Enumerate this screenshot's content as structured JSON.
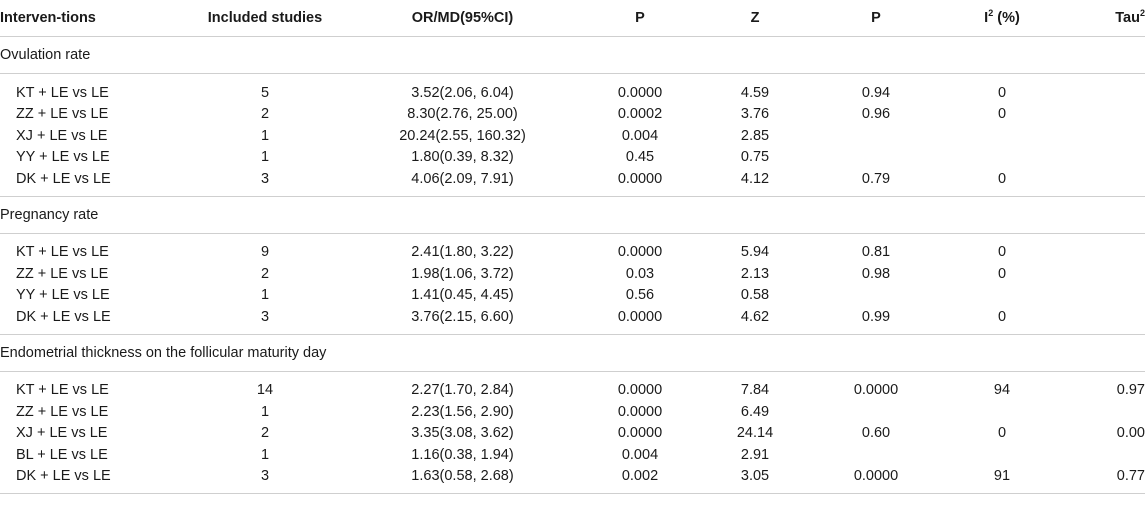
{
  "headers": {
    "interventions": "Interven-tions",
    "included": "Included studies",
    "or_md": "OR/MD(95%CI)",
    "p1": "P",
    "z": "Z",
    "p2": "P",
    "i2_base": "I",
    "i2_sup": "2",
    "i2_suffix": " (%)",
    "tau_base": "Tau",
    "tau_sup": "2"
  },
  "sections": [
    {
      "title": "Ovulation rate",
      "rows": [
        {
          "intervention": "KT + LE vs LE",
          "studies": "5",
          "ci": "3.52(2.06, 6.04)",
          "p": "0.0000",
          "z": "4.59",
          "p_het": "0.94",
          "i2": "0",
          "tau2": ""
        },
        {
          "intervention": "ZZ + LE vs LE",
          "studies": "2",
          "ci": "8.30(2.76, 25.00)",
          "p": "0.0002",
          "z": "3.76",
          "p_het": "0.96",
          "i2": "0",
          "tau2": ""
        },
        {
          "intervention": "XJ + LE vs LE",
          "studies": "1",
          "ci": "20.24(2.55, 160.32)",
          "p": "0.004",
          "z": "2.85",
          "p_het": "",
          "i2": "",
          "tau2": ""
        },
        {
          "intervention": "YY + LE vs LE",
          "studies": "1",
          "ci": "1.80(0.39, 8.32)",
          "p": "0.45",
          "z": "0.75",
          "p_het": "",
          "i2": "",
          "tau2": ""
        },
        {
          "intervention": "DK + LE vs LE",
          "studies": "3",
          "ci": "4.06(2.09, 7.91)",
          "p": "0.0000",
          "z": "4.12",
          "p_het": "0.79",
          "i2": "0",
          "tau2": ""
        }
      ]
    },
    {
      "title": "Pregnancy rate",
      "rows": [
        {
          "intervention": "KT + LE vs LE",
          "studies": "9",
          "ci": "2.41(1.80, 3.22)",
          "p": "0.0000",
          "z": "5.94",
          "p_het": "0.81",
          "i2": "0",
          "tau2": ""
        },
        {
          "intervention": "ZZ + LE vs LE",
          "studies": "2",
          "ci": "1.98(1.06, 3.72)",
          "p": "0.03",
          "z": "2.13",
          "p_het": "0.98",
          "i2": "0",
          "tau2": ""
        },
        {
          "intervention": "YY + LE vs LE",
          "studies": "1",
          "ci": "1.41(0.45, 4.45)",
          "p": "0.56",
          "z": "0.58",
          "p_het": "",
          "i2": "",
          "tau2": ""
        },
        {
          "intervention": "DK + LE vs LE",
          "studies": "3",
          "ci": "3.76(2.15, 6.60)",
          "p": "0.0000",
          "z": "4.62",
          "p_het": "0.99",
          "i2": "0",
          "tau2": ""
        }
      ]
    },
    {
      "title": "Endometrial thickness on the follicular maturity day",
      "rows": [
        {
          "intervention": "KT + LE vs LE",
          "studies": "14",
          "ci": "2.27(1.70, 2.84)",
          "p": "0.0000",
          "z": "7.84",
          "p_het": "0.0000",
          "i2": "94",
          "tau2": "0.97"
        },
        {
          "intervention": "ZZ + LE vs LE",
          "studies": "1",
          "ci": "2.23(1.56, 2.90)",
          "p": "0.0000",
          "z": "6.49",
          "p_het": "",
          "i2": "",
          "tau2": ""
        },
        {
          "intervention": "XJ + LE vs LE",
          "studies": "2",
          "ci": "3.35(3.08, 3.62)",
          "p": "0.0000",
          "z": "24.14",
          "p_het": "0.60",
          "i2": "0",
          "tau2": "0.00"
        },
        {
          "intervention": "BL + LE vs LE",
          "studies": "1",
          "ci": "1.16(0.38, 1.94)",
          "p": "0.004",
          "z": "2.91",
          "p_het": "",
          "i2": "",
          "tau2": ""
        },
        {
          "intervention": "DK + LE vs LE",
          "studies": "3",
          "ci": "1.63(0.58, 2.68)",
          "p": "0.002",
          "z": "3.05",
          "p_het": "0.0000",
          "i2": "91",
          "tau2": "0.77"
        }
      ]
    }
  ]
}
